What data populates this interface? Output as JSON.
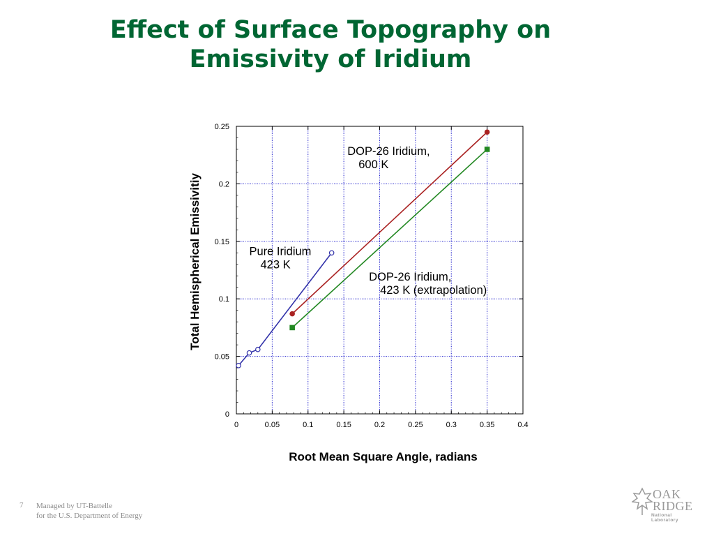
{
  "slide": {
    "title_line1": "Effect of Surface Topography on",
    "title_line2": "Emissivity of Iridium",
    "page_number": "7",
    "footer_line1": "Managed by UT-Battelle",
    "footer_line2": "for the U.S. Department of Energy",
    "logo_word1": "OAK",
    "logo_word2": "RIDGE",
    "logo_word3": "National Laboratory"
  },
  "colors": {
    "title": "#006633",
    "pure_iridium": "#3333aa",
    "dop26_600K": "#aa2222",
    "dop26_423K": "#228822",
    "grid": "#1a1acc"
  },
  "chart_data": {
    "type": "scatter",
    "title": "",
    "xlabel": "Root Mean Square  Angle, radians",
    "ylabel": "Total  Hemispherical  Emissivitiy",
    "xlim": [
      0,
      0.4
    ],
    "ylim": [
      0,
      0.25
    ],
    "x_ticks": [
      0,
      0.05,
      0.1,
      0.15,
      0.2,
      0.25,
      0.3,
      0.35,
      0.4
    ],
    "x_tick_labels": [
      "0",
      "0.05",
      "0.1",
      "0.15",
      "0.2",
      "0.25",
      "0.3",
      "0.35",
      "0.4"
    ],
    "y_ticks": [
      0,
      0.05,
      0.1,
      0.15,
      0.2,
      0.25
    ],
    "y_tick_labels": [
      "0",
      "0.05",
      "0.1",
      "0.15",
      "0.2",
      "0.25"
    ],
    "grid": true,
    "series": [
      {
        "id": "pure",
        "marker": "open-circle",
        "x": [
          0.003,
          0.018,
          0.03,
          0.133
        ],
        "y": [
          0.042,
          0.053,
          0.056,
          0.14
        ]
      },
      {
        "id": "dop600",
        "marker": "filled-circle",
        "x": [
          0.078,
          0.35
        ],
        "y": [
          0.087,
          0.245
        ]
      },
      {
        "id": "dop423",
        "marker": "filled-square",
        "x": [
          0.078,
          0.35
        ],
        "y": [
          0.075,
          0.23
        ]
      }
    ],
    "annotations": [
      {
        "id": "pure",
        "lines": [
          "Pure Iridium",
          "423 K"
        ],
        "anchor": [
          0.018,
          0.138
        ]
      },
      {
        "id": "dop600",
        "lines": [
          "DOP-26 Iridium,",
          "600 K"
        ],
        "anchor": [
          0.155,
          0.225
        ]
      },
      {
        "id": "dop423",
        "lines": [
          "DOP-26 Iridium,",
          "423 K (extrapolation)"
        ],
        "anchor": [
          0.185,
          0.116
        ]
      }
    ]
  }
}
